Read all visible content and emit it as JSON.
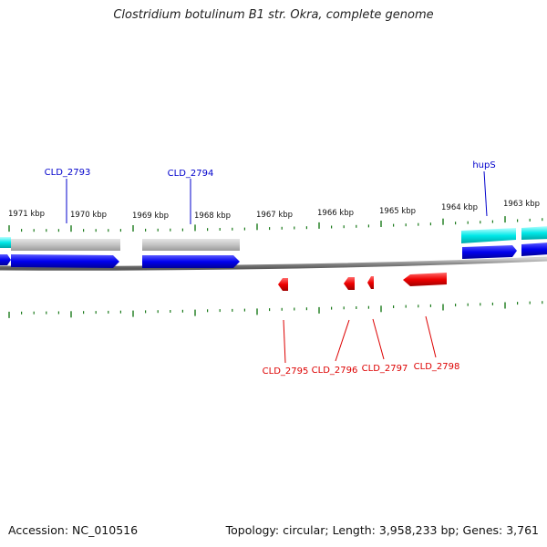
{
  "title": "Clostridium botulinum B1 str. Okra, complete genome",
  "footer": {
    "accession": "Accession: NC_010516",
    "summary": "Topology: circular; Length: 3,958,233 bp; Genes: 3,761"
  },
  "colors": {
    "forward_label": "#0000cc",
    "reverse_label": "#dd0000",
    "cds_forward": "#0000ee",
    "cds_reverse": "#ee0000",
    "gene_grey": "#c0c0c0",
    "gene_cyan": "#00e5e5",
    "tick": "#1a7a1a",
    "backbone": "#888888"
  },
  "scale_labels": [
    "1971 kbp",
    "1970 kbp",
    "1969 kbp",
    "1968 kbp",
    "1967 kbp",
    "1966 kbp",
    "1965 kbp",
    "1964 kbp",
    "1963 kbp"
  ],
  "forward_genes": [
    {
      "label": "CLD_2793"
    },
    {
      "label": "CLD_2794"
    },
    {
      "label": "hupS"
    }
  ],
  "reverse_genes": [
    {
      "label": "CLD_2795"
    },
    {
      "label": "CLD_2796"
    },
    {
      "label": "CLD_2797"
    },
    {
      "label": "CLD_2798"
    }
  ]
}
